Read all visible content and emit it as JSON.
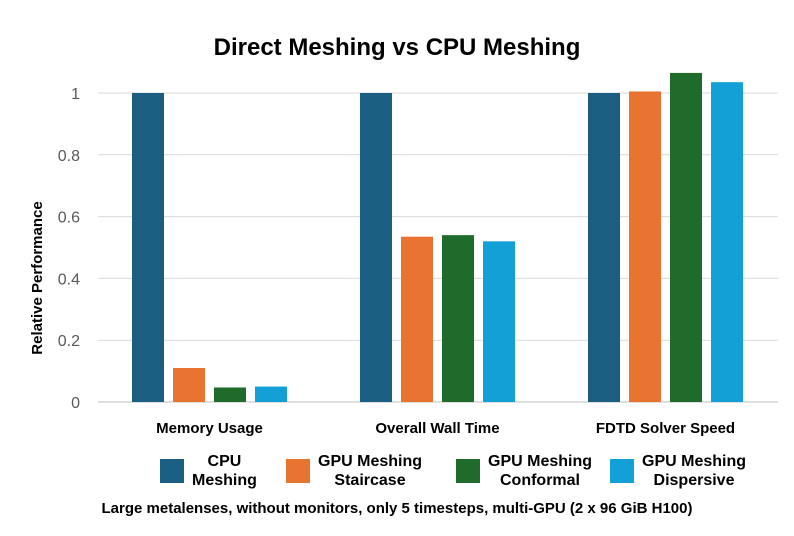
{
  "chart_data": {
    "type": "bar",
    "title": "Direct Meshing vs CPU Meshing",
    "ylabel": "Relative Performance",
    "xlabel": "",
    "ylim": [
      0,
      1.1
    ],
    "yticks": [
      "0",
      "0.2",
      "0.4",
      "0.6",
      "0.8",
      "1"
    ],
    "grid": true,
    "legend_position": "bottom",
    "categories": [
      "Memory Usage",
      "Overall Wall Time",
      "FDTD Solver Speed"
    ],
    "series": [
      {
        "name": "CPU Meshing",
        "color": "#1a5f82",
        "values": [
          1.0,
          1.0,
          1.0
        ]
      },
      {
        "name": "GPU Meshing Staircase",
        "color": "#e97331",
        "values": [
          0.11,
          0.535,
          1.005
        ]
      },
      {
        "name": "GPU Meshing Conformal",
        "color": "#1f6b2c",
        "values": [
          0.047,
          0.54,
          1.065
        ]
      },
      {
        "name": "GPU Meshing Dispersive",
        "color": "#12a0d7",
        "values": [
          0.05,
          0.52,
          1.035
        ]
      }
    ],
    "legend_labels": [
      "CPU\nMeshing",
      "GPU Meshing\nStaircase",
      "GPU Meshing\nConformal",
      "GPU Meshing\nDispersive"
    ],
    "caption": "Large metalenses, without monitors, only 5 timesteps, multi-GPU (2 x 96 GiB H100)"
  }
}
